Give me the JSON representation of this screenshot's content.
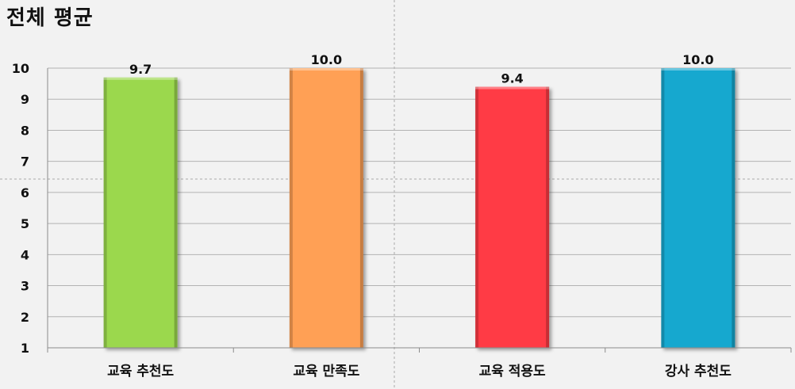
{
  "chart_data": {
    "type": "bar",
    "title": "전체 평균",
    "categories": [
      "교육 추천도",
      "교육 만족도",
      "교육 적용도",
      "강사 추천도"
    ],
    "values": [
      9.7,
      10.0,
      9.4,
      10.0
    ],
    "data_labels": [
      "9.7",
      "10.0",
      "9.4",
      "10.0"
    ],
    "colors": [
      "#9bd84d",
      "#ffa055",
      "#ff3a45",
      "#17a8cf"
    ],
    "ylim": [
      1,
      10
    ],
    "yticks": [
      "1",
      "2",
      "3",
      "4",
      "5",
      "6",
      "7",
      "8",
      "9",
      "10"
    ],
    "xlabel": "",
    "ylabel": "",
    "grid": true,
    "legend": "none"
  }
}
